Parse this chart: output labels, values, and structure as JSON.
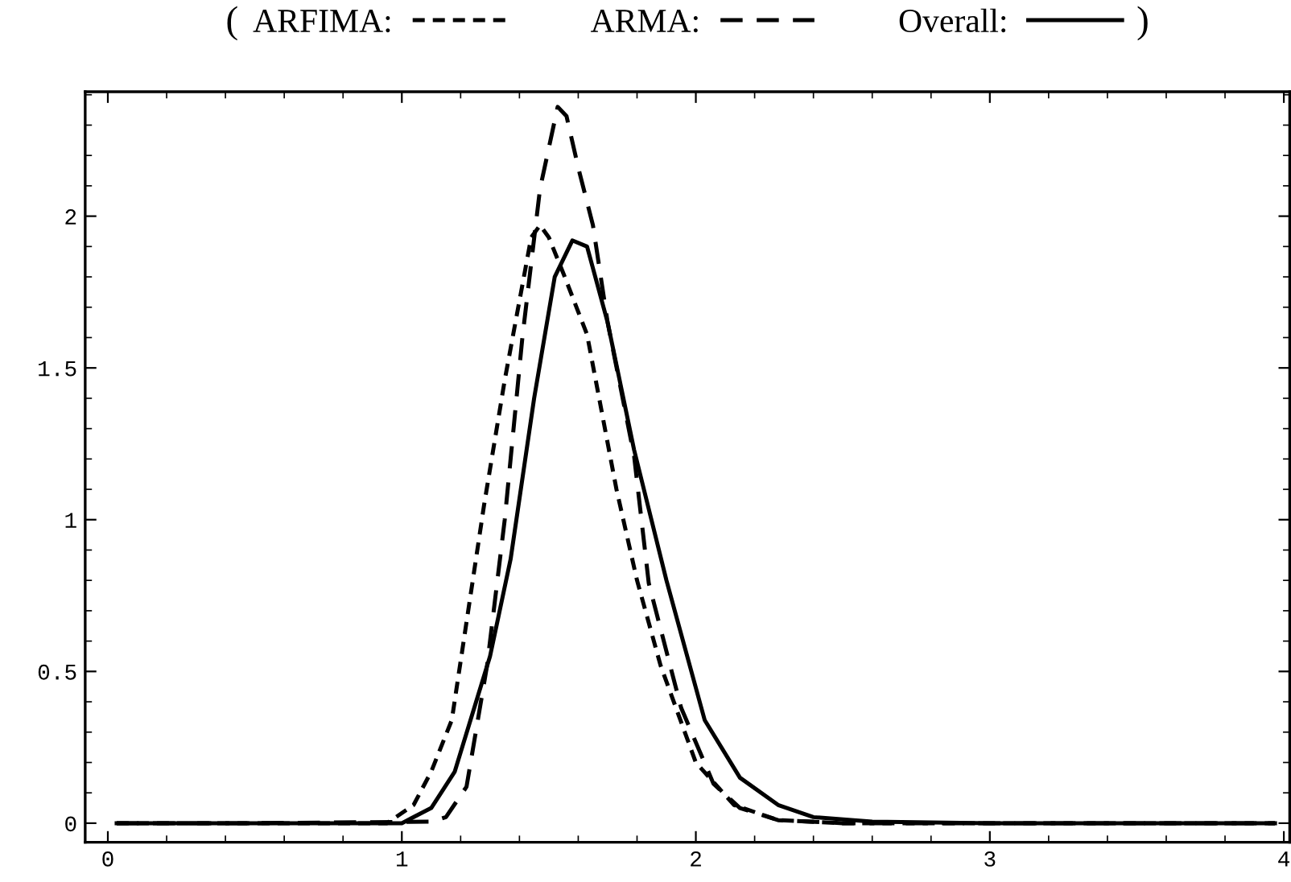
{
  "chart_data": {
    "type": "line",
    "series": [
      {
        "name": "ARFIMA:",
        "color": "#000000",
        "line_style": "dashed",
        "x": [
          0.03,
          0.5,
          0.95,
          1.04,
          1.1,
          1.17,
          1.28,
          1.35,
          1.44,
          1.47,
          1.5,
          1.55,
          1.63,
          1.73,
          1.8,
          1.88,
          2.0,
          2.13,
          2.28,
          2.5,
          3.0,
          3.97
        ],
        "values": [
          0,
          0,
          0,
          0.06,
          0.17,
          0.34,
          1.05,
          1.46,
          1.93,
          1.97,
          1.93,
          1.81,
          1.61,
          1.1,
          0.8,
          0.52,
          0.2,
          0.06,
          0.01,
          0,
          0,
          0
        ]
      },
      {
        "name": "ARMA:",
        "color": "#000000",
        "line_style": "dashed",
        "x": [
          0.03,
          0.5,
          1.1,
          1.15,
          1.22,
          1.29,
          1.35,
          1.41,
          1.47,
          1.53,
          1.56,
          1.6,
          1.65,
          1.7,
          1.79,
          1.84,
          1.95,
          2.06,
          2.15,
          2.28,
          2.5,
          3.0,
          3.97
        ],
        "values": [
          0,
          0,
          0.005,
          0.02,
          0.12,
          0.52,
          1.0,
          1.6,
          2.09,
          2.36,
          2.33,
          2.16,
          1.97,
          1.65,
          1.21,
          0.79,
          0.38,
          0.13,
          0.05,
          0.01,
          0,
          0,
          0
        ]
      },
      {
        "name": "Overall:",
        "color": "#000000",
        "line_style": "solid",
        "x": [
          0.03,
          0.5,
          1.0,
          1.1,
          1.18,
          1.3,
          1.37,
          1.45,
          1.52,
          1.58,
          1.63,
          1.7,
          1.79,
          1.9,
          2.03,
          2.15,
          2.28,
          2.4,
          2.6,
          3.0,
          3.97
        ],
        "values": [
          0,
          0,
          0,
          0.05,
          0.17,
          0.55,
          0.87,
          1.4,
          1.8,
          1.92,
          1.9,
          1.65,
          1.23,
          0.8,
          0.34,
          0.15,
          0.06,
          0.02,
          0.005,
          0,
          0
        ]
      }
    ],
    "xlim": [
      -0.077,
      4.02
    ],
    "ylim": [
      -0.063,
      2.41
    ],
    "xticks": [
      0,
      1,
      2,
      3,
      4
    ],
    "yticks": [
      0,
      0.5,
      1,
      1.5,
      2
    ],
    "grid": false,
    "marker": "none",
    "legend": "top",
    "annotations": [
      "(",
      ")"
    ]
  }
}
